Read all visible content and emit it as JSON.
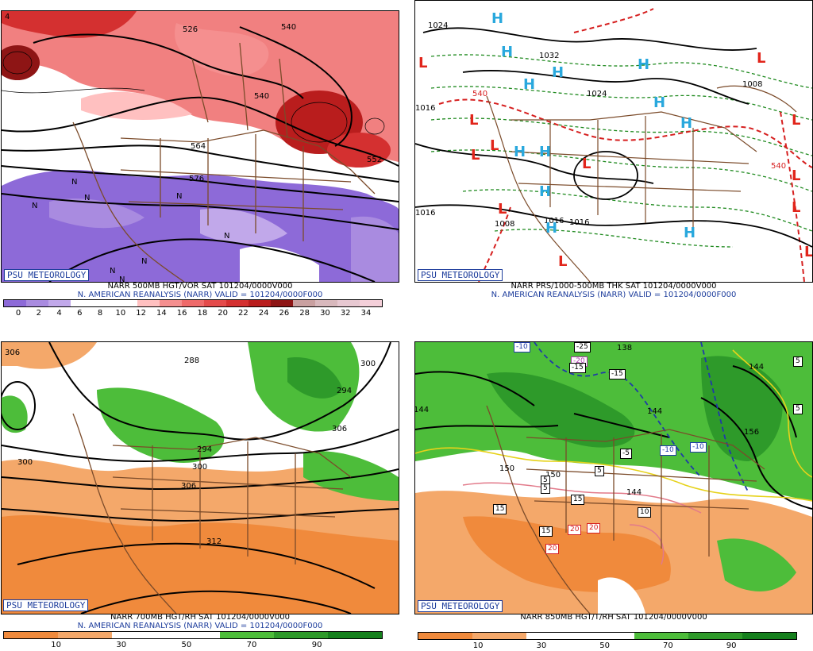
{
  "colors": {
    "vorticity": [
      "#8d6ad8",
      "#a98be0",
      "#c1a8ea",
      "#ffffff",
      "#ffffff",
      "#ffffff",
      "#ffc0c0",
      "#f58f8f",
      "#ef6a6a",
      "#e44a4a",
      "#d43030",
      "#b91d1d",
      "#8e1515",
      "#c9a0a0",
      "#d8b8bc",
      "#e7c8d1",
      "#f4cfd9"
    ],
    "rh": [
      "#f08a3c",
      "#f4a86a",
      "#ffffff",
      "#ffffff",
      "#4dbd3a",
      "#2e9a2a",
      "#15801d"
    ],
    "land": "#7b4b2a"
  },
  "panels": [
    {
      "badge": "PSU METEOROLOGY",
      "caption1": "NARR 500MB HGT/VOR SAT 101204/0000V000",
      "caption2": "N. AMERICAN REANALYSIS (NARR) VALID = 101204/0000F000",
      "ticks": [
        "0",
        "2",
        "4",
        "6",
        "8",
        "10",
        "12",
        "14",
        "16",
        "18",
        "20",
        "22",
        "24",
        "26",
        "28",
        "30",
        "32",
        "34"
      ],
      "labels": [
        "526",
        "540",
        "540",
        "552",
        "564",
        "576",
        "N",
        "N",
        "N",
        "N",
        "N",
        "N",
        "N",
        "N"
      ]
    },
    {
      "badge": "PSU METEOROLOGY",
      "caption1": "NARR PRS/1000-500MB THK SAT 101204/0000V000",
      "caption2": "N. AMERICAN REANALYSIS (NARR) VALID = 101204/0000F000",
      "labels": [
        "1024",
        "1032",
        "1024",
        "1016",
        "1016",
        "1016",
        "1016",
        "1008",
        "1008",
        "540",
        "540"
      ],
      "highs": [
        "H",
        "H",
        "H",
        "H",
        "H",
        "H",
        "H",
        "H",
        "H",
        "H",
        "H",
        "H"
      ],
      "lows": [
        "L",
        "L",
        "L",
        "L",
        "L",
        "L",
        "L",
        "L",
        "L",
        "L",
        "L",
        "L"
      ]
    },
    {
      "badge": "PSU METEOROLOGY",
      "caption1": "NARR 700MB HGT/RH SAT 101204/0000V000",
      "caption2": "N. AMERICAN REANALYSIS (NARR) VALID = 101204/0000F000",
      "ticks": [
        "10",
        "30",
        "50",
        "70",
        "90"
      ],
      "labels": [
        "306",
        "288",
        "300",
        "294",
        "306",
        "294",
        "300",
        "306",
        "312",
        "300"
      ]
    },
    {
      "badge": "PSU METEOROLOGY",
      "caption1": "NARR 850MB HGT/T/RH SAT 101204/0000V000",
      "ticks": [
        "10",
        "30",
        "50",
        "70",
        "90"
      ],
      "labels": [
        "144",
        "144",
        "150",
        "150",
        "144",
        "156",
        "138",
        "144"
      ],
      "boxes": [
        "-10",
        "-20",
        "-25",
        "-15",
        "-15",
        "-5",
        "-10",
        "-10",
        "5",
        "5",
        "5",
        "15",
        "15",
        "15",
        "20",
        "20",
        "20",
        "10",
        "5",
        "5"
      ]
    }
  ]
}
